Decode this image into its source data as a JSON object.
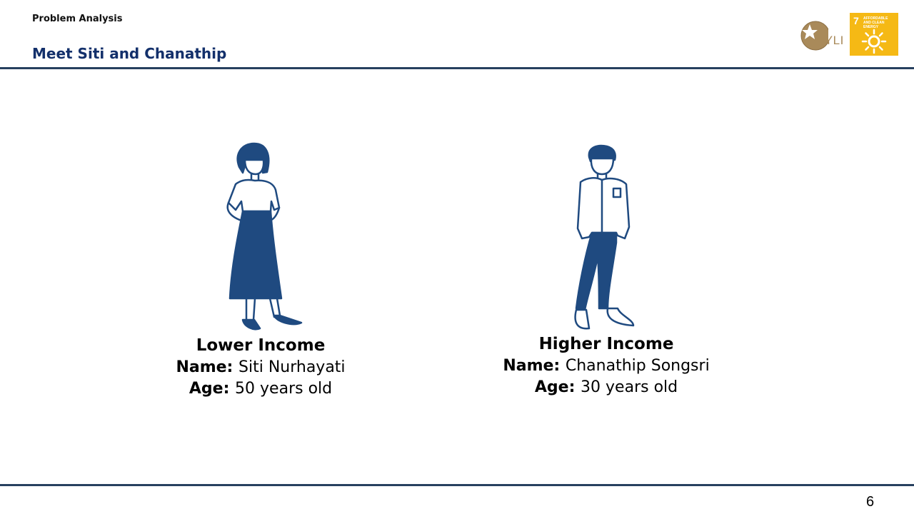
{
  "header": {
    "section": "Problem Analysis",
    "title": "Meet Siti and Chanathip"
  },
  "logos": {
    "hyli": {
      "icon": "star-globe-logo",
      "text": "HYLI"
    },
    "sdg": {
      "number": "7",
      "text": "AFFORDABLE AND CLEAN ENERGY",
      "icon": "sun-icon",
      "color": "#f5b915"
    }
  },
  "personas": [
    {
      "group": "Lower Income",
      "name_label": "Name:",
      "name": "Siti Nurhayati",
      "age_label": "Age:",
      "age": "50 years old",
      "illustration": "woman-illustration"
    },
    {
      "group": "Higher Income",
      "name_label": "Name:",
      "name": "Chanathip Songsri",
      "age_label": "Age:",
      "age": "30 years old",
      "illustration": "man-illustration"
    }
  ],
  "colors": {
    "title": "#13306b",
    "rule": "#27405f",
    "illustration": "#1f4a80"
  },
  "footer": {
    "page_number": "6"
  }
}
